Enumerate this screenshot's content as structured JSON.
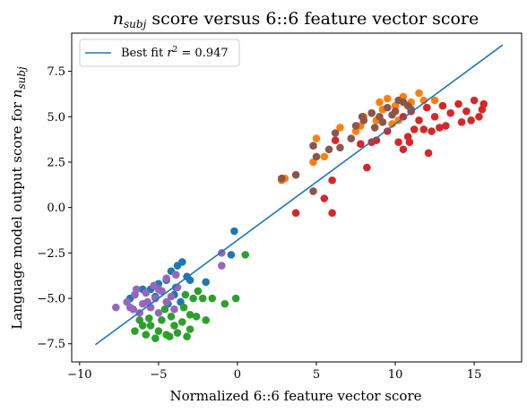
{
  "chart_data": {
    "type": "scatter",
    "title": "n_subj score versus 6::6 feature vector score",
    "xlabel": "Normalized 6::6 feature vector score",
    "ylabel": "Language model output score for n_subj",
    "xlim": [
      -10.5,
      18.0
    ],
    "ylim": [
      -8.5,
      9.6
    ],
    "x_ticks": [
      -10,
      -5,
      0,
      5,
      10,
      15
    ],
    "y_ticks": [
      -7.5,
      -5.0,
      -2.5,
      0.0,
      2.5,
      5.0,
      7.5
    ],
    "x_tick_labels": [
      "−10",
      "−5",
      "0",
      "5",
      "10",
      "15"
    ],
    "y_tick_labels": [
      "−7.5",
      "−5.0",
      "−2.5",
      "0.0",
      "2.5",
      "5.0",
      "7.5"
    ],
    "grid": false,
    "legend": {
      "placement": "top-left",
      "label": "Best fit r² = 0.947"
    },
    "fit_line": {
      "x": [
        -9.0,
        16.8
      ],
      "y": [
        -7.55,
        8.95
      ],
      "r2": 0.947,
      "color": "#1f77b4"
    },
    "series": [
      {
        "color": "#1f77b4",
        "points": [
          [
            -3.5,
            -3.0
          ],
          [
            -3.8,
            -3.2
          ],
          [
            -4.2,
            -3.5
          ],
          [
            -3.2,
            -3.8
          ],
          [
            -4.5,
            -4.0
          ],
          [
            -5.0,
            -4.2
          ],
          [
            -5.5,
            -4.5
          ],
          [
            -6.0,
            -4.5
          ],
          [
            -4.8,
            -4.6
          ],
          [
            -6.5,
            -4.8
          ],
          [
            -3.9,
            -4.4
          ],
          [
            -4.0,
            -4.8
          ],
          [
            -5.2,
            -4.9
          ],
          [
            -6.8,
            -5.0
          ],
          [
            -3.6,
            -5.2
          ],
          [
            -4.4,
            -5.3
          ],
          [
            -0.2,
            -1.3
          ],
          [
            -0.4,
            -2.6
          ],
          [
            -2.0,
            -4.1
          ],
          [
            -3.0,
            -4.0
          ]
        ]
      },
      {
        "color": "#ff7f0e",
        "points": [
          [
            9.0,
            5.8
          ],
          [
            9.5,
            6.0
          ],
          [
            10.0,
            5.6
          ],
          [
            10.5,
            6.1
          ],
          [
            8.5,
            5.2
          ],
          [
            11.0,
            5.8
          ],
          [
            11.5,
            6.3
          ],
          [
            12.0,
            5.5
          ],
          [
            8.0,
            5.0
          ],
          [
            9.2,
            5.4
          ],
          [
            10.2,
            4.8
          ],
          [
            11.8,
            5.9
          ],
          [
            7.5,
            4.2
          ],
          [
            6.5,
            4.4
          ],
          [
            5.5,
            2.8
          ],
          [
            4.8,
            2.5
          ],
          [
            5.0,
            3.8
          ],
          [
            3.0,
            1.6
          ],
          [
            2.8,
            1.5
          ],
          [
            9.8,
            4.6
          ],
          [
            12.5,
            5.9
          ],
          [
            8.8,
            4.8
          ],
          [
            7.8,
            4.5
          ]
        ]
      },
      {
        "color": "#2ca02c",
        "points": [
          [
            -5.5,
            -6.5
          ],
          [
            -5.0,
            -6.8
          ],
          [
            -4.5,
            -7.0
          ],
          [
            -4.0,
            -6.5
          ],
          [
            -3.5,
            -6.3
          ],
          [
            -3.0,
            -6.7
          ],
          [
            -6.0,
            -6.5
          ],
          [
            -6.5,
            -6.8
          ],
          [
            -5.8,
            -7.0
          ],
          [
            -5.2,
            -7.2
          ],
          [
            -4.8,
            -6.2
          ],
          [
            -4.2,
            -6.0
          ],
          [
            -3.8,
            -6.9
          ],
          [
            -3.2,
            -7.1
          ],
          [
            -5.6,
            -6.1
          ],
          [
            -6.2,
            -6.2
          ],
          [
            -4.6,
            -5.6
          ],
          [
            -3.4,
            -5.5
          ],
          [
            -3.0,
            -5.9
          ],
          [
            -2.6,
            -6.0
          ],
          [
            -2.8,
            -5.0
          ],
          [
            -2.5,
            -4.6
          ],
          [
            -3.3,
            -4.8
          ],
          [
            -2.2,
            -5.0
          ],
          [
            -1.6,
            -5.0
          ],
          [
            -0.8,
            -5.3
          ],
          [
            -0.1,
            -5.0
          ],
          [
            0.5,
            -2.6
          ],
          [
            -2.0,
            -6.2
          ],
          [
            -4.3,
            -7.1
          ]
        ]
      },
      {
        "color": "#d62728",
        "points": [
          [
            10.5,
            5.0
          ],
          [
            11.0,
            5.3
          ],
          [
            11.5,
            4.8
          ],
          [
            12.0,
            5.5
          ],
          [
            12.5,
            5.0
          ],
          [
            13.0,
            5.6
          ],
          [
            13.5,
            5.2
          ],
          [
            14.0,
            5.7
          ],
          [
            14.5,
            5.3
          ],
          [
            15.0,
            5.9
          ],
          [
            15.5,
            5.4
          ],
          [
            15.3,
            5.0
          ],
          [
            14.8,
            4.8
          ],
          [
            14.2,
            4.7
          ],
          [
            13.2,
            4.5
          ],
          [
            12.8,
            4.4
          ],
          [
            12.3,
            4.2
          ],
          [
            11.8,
            4.3
          ],
          [
            11.2,
            4.3
          ],
          [
            10.8,
            3.9
          ],
          [
            10.2,
            3.6
          ],
          [
            10.5,
            3.2
          ],
          [
            12.1,
            3.0
          ],
          [
            10.9,
            3.6
          ],
          [
            9.5,
            4.2
          ],
          [
            8.8,
            3.7
          ],
          [
            8.5,
            3.6
          ],
          [
            7.8,
            3.5
          ],
          [
            8.2,
            2.2
          ],
          [
            6.2,
            3.7
          ],
          [
            6.0,
            1.5
          ],
          [
            5.5,
            0.5
          ],
          [
            6.0,
            -0.3
          ],
          [
            3.7,
            -0.3
          ],
          [
            15.6,
            5.7
          ]
        ]
      },
      {
        "color": "#9467bd",
        "points": [
          [
            -7.0,
            -5.2
          ],
          [
            -6.8,
            -5.5
          ],
          [
            -6.5,
            -4.8
          ],
          [
            -6.2,
            -5.8
          ],
          [
            -6.0,
            -5.3
          ],
          [
            -5.8,
            -4.7
          ],
          [
            -5.5,
            -5.5
          ],
          [
            -5.2,
            -5.0
          ],
          [
            -5.0,
            -5.8
          ],
          [
            -4.8,
            -4.6
          ],
          [
            -4.5,
            -5.2
          ],
          [
            -4.2,
            -4.9
          ],
          [
            -4.0,
            -5.6
          ],
          [
            -3.8,
            -4.4
          ],
          [
            -5.3,
            -4.3
          ],
          [
            -6.4,
            -4.5
          ],
          [
            -7.7,
            -5.5
          ],
          [
            -1.0,
            -2.5
          ],
          [
            -1.0,
            -3.2
          ],
          [
            -3.9,
            -3.7
          ],
          [
            -4.5,
            -3.9
          ],
          [
            -5.7,
            -5.2
          ],
          [
            -6.6,
            -5.6
          ],
          [
            -5.0,
            -4.5
          ]
        ]
      },
      {
        "color": "#8c564b",
        "points": [
          [
            8.0,
            4.8
          ],
          [
            8.5,
            5.2
          ],
          [
            9.0,
            5.0
          ],
          [
            9.5,
            5.5
          ],
          [
            10.0,
            5.3
          ],
          [
            10.5,
            5.8
          ],
          [
            11.0,
            5.4
          ],
          [
            7.5,
            4.5
          ],
          [
            9.2,
            4.7
          ],
          [
            8.7,
            4.4
          ],
          [
            10.2,
            5.9
          ],
          [
            7.2,
            3.8
          ],
          [
            6.5,
            3.3
          ],
          [
            5.8,
            3.2
          ],
          [
            5.0,
            2.8
          ],
          [
            4.8,
            3.4
          ],
          [
            3.7,
            1.8
          ],
          [
            2.8,
            1.6
          ],
          [
            4.8,
            0.9
          ],
          [
            9.8,
            5.1
          ],
          [
            10.8,
            5.6
          ],
          [
            6.2,
            4.1
          ],
          [
            7.9,
            5.0
          ]
        ]
      }
    ]
  }
}
